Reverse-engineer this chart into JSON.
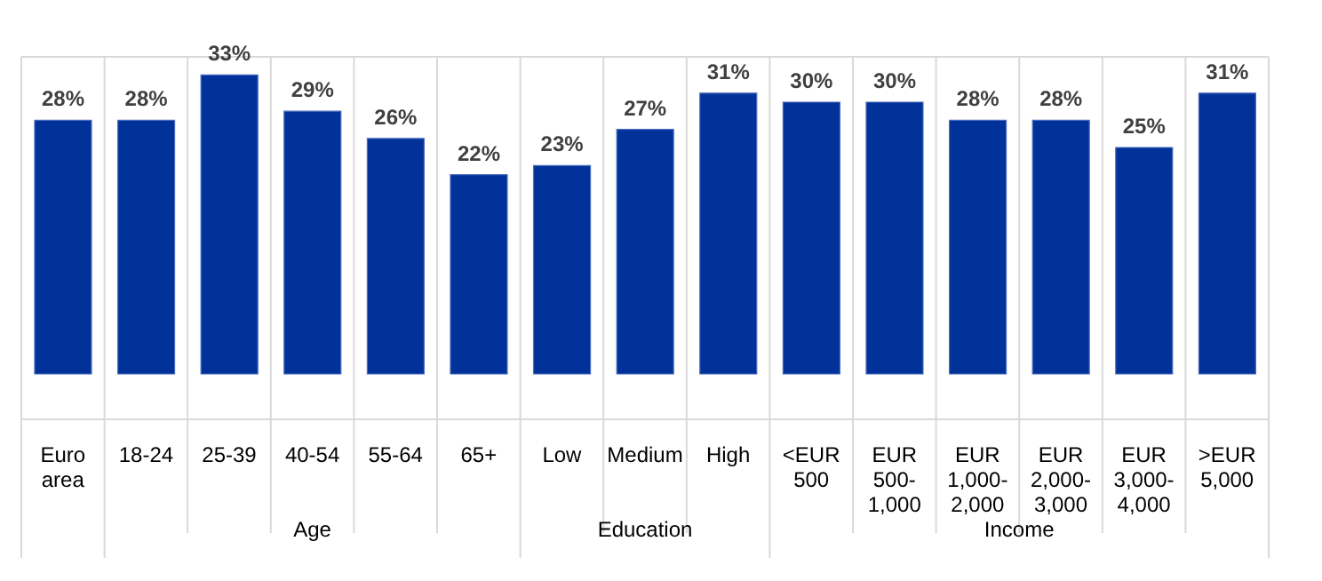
{
  "chart_data": {
    "type": "bar",
    "categories": [
      "Euro area",
      "18-24",
      "25-39",
      "40-54",
      "55-64",
      "65+",
      "Low",
      "Medium",
      "High",
      "<EUR 500",
      "EUR 500-1,000",
      "EUR 1,000-2,000",
      "EUR 2,000-3,000",
      "EUR 3,000-4,000",
      ">EUR 5,000"
    ],
    "values": [
      28,
      28,
      33,
      29,
      26,
      22,
      23,
      27,
      31,
      30,
      30,
      28,
      28,
      25,
      31
    ],
    "value_labels": [
      "28%",
      "28%",
      "33%",
      "29%",
      "26%",
      "22%",
      "23%",
      "27%",
      "31%",
      "30%",
      "30%",
      "28%",
      "28%",
      "25%",
      "31%"
    ],
    "color": "#003299",
    "ylim": [
      -5,
      35
    ],
    "grid": true,
    "tick_labels": "x",
    "annotations": [
      "Age",
      "Education",
      "Income"
    ]
  }
}
